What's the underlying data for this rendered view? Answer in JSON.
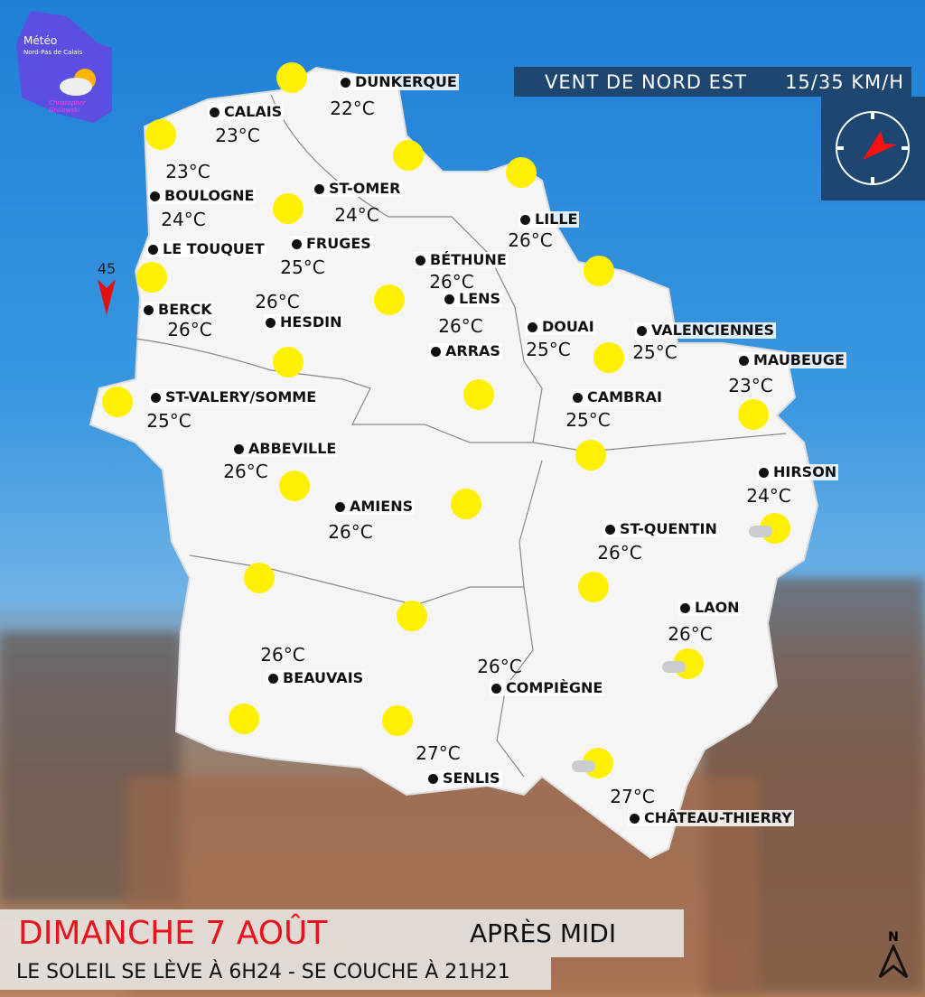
{
  "logo": {
    "title": "Météo",
    "subtitle": "Nord-Pas de Calais",
    "author": "Christopher Grolewski"
  },
  "wind": {
    "direction": "VENT DE NORD EST",
    "speed": "15/35 KM/H",
    "compass": "compass-icon",
    "arrow_color": "#ff1010"
  },
  "header": {
    "date": "DIMANCHE 7 AOÛT",
    "period": "APRÈS MIDI",
    "sun_times": "LE SOLEIL SE LÈVE À 6H24 - SE COUCHE À 21H21",
    "date_color": "#e8141b"
  },
  "north_label": "N",
  "sea_wind": {
    "value": "45",
    "icon": "wind-arrow-icon"
  },
  "cities": [
    {
      "name": "DUNKERQUE",
      "temp": "22°C"
    },
    {
      "name": "CALAIS",
      "temp": "23°C"
    },
    {
      "name": "BOULOGNE",
      "temp": "24°C"
    },
    {
      "name": "ST-OMER",
      "temp": "24°C"
    },
    {
      "name": "LE TOUQUET",
      "temp": ""
    },
    {
      "name": "FRUGES",
      "temp": "25°C"
    },
    {
      "name": "BERCK",
      "temp": "26°C"
    },
    {
      "name": "HESDIN",
      "temp": "26°C"
    },
    {
      "name": "LILLE",
      "temp": "26°C"
    },
    {
      "name": "BÉTHUNE",
      "temp": "26°C"
    },
    {
      "name": "LENS",
      "temp": "26°C"
    },
    {
      "name": "ARRAS",
      "temp": ""
    },
    {
      "name": "DOUAI",
      "temp": "25°C"
    },
    {
      "name": "VALENCIENNES",
      "temp": "25°C"
    },
    {
      "name": "MAUBEUGE",
      "temp": "23°C"
    },
    {
      "name": "CAMBRAI",
      "temp": "25°C"
    },
    {
      "name": "ST-VALERY/SOMME",
      "temp": "25°C"
    },
    {
      "name": "ABBEVILLE",
      "temp": "26°C"
    },
    {
      "name": "AMIENS",
      "temp": "26°C"
    },
    {
      "name": "HIRSON",
      "temp": "24°C"
    },
    {
      "name": "ST-QUENTIN",
      "temp": "26°C"
    },
    {
      "name": "LAON",
      "temp": "26°C"
    },
    {
      "name": "BEAUVAIS",
      "temp": "26°C"
    },
    {
      "name": "COMPIÈGNE",
      "temp": "26°C"
    },
    {
      "name": "SENLIS",
      "temp": "27°C"
    },
    {
      "name": "CHÂTEAU-THIERRY",
      "temp": "27°C"
    }
  ],
  "extra_temps": [
    "23°C"
  ],
  "weather_icons": [
    "sunny",
    "sunny",
    "sunny",
    "sunny",
    "sunny",
    "sunny",
    "sunny",
    "sunny",
    "sunny",
    "sunny",
    "sunny",
    "sunny",
    "sunny",
    "sunny",
    "sunny",
    "sunny",
    "partly-cloudy",
    "sunny",
    "sunny",
    "sunny",
    "partly-cloudy",
    "sunny",
    "sunny",
    "partly-cloudy"
  ],
  "colors": {
    "sun": "#ffef00",
    "map": "#f5f5f5",
    "panel": "#1d4670"
  }
}
